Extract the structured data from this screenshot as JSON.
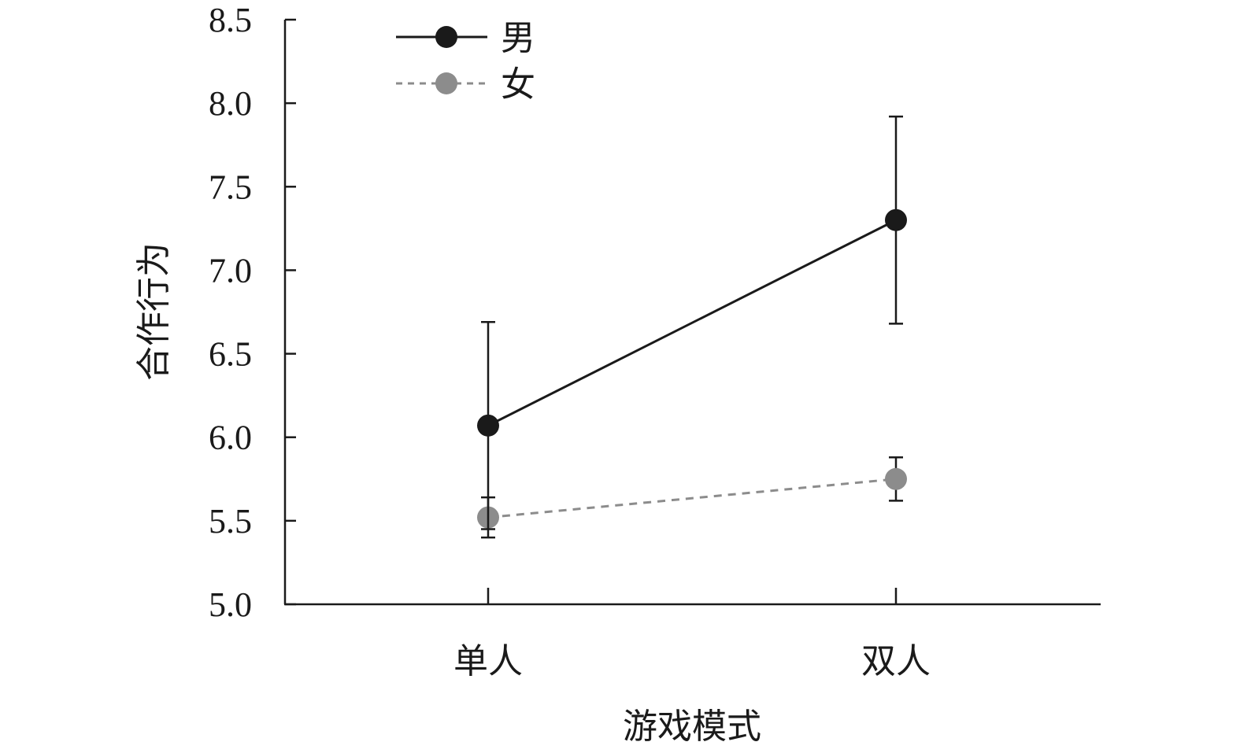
{
  "chart_data": {
    "type": "line",
    "xlabel": "游戏模式",
    "ylabel": "合作行为",
    "categories": [
      "单人",
      "双人"
    ],
    "ylim": [
      5.0,
      8.5
    ],
    "yticks": [
      "5.0",
      "5.5",
      "6.0",
      "6.5",
      "7.0",
      "7.5",
      "8.0",
      "8.5"
    ],
    "ytick_values": [
      5.0,
      5.5,
      6.0,
      6.5,
      7.0,
      7.5,
      8.0,
      8.5
    ],
    "grid": false,
    "legend_position": "top-left",
    "series": [
      {
        "name": "男",
        "values": [
          6.07,
          7.3
        ],
        "error": [
          0.62,
          0.62
        ],
        "color": "#1a1a1a",
        "line_style": "solid",
        "marker": "filled-circle"
      },
      {
        "name": "女",
        "values": [
          5.52,
          5.75
        ],
        "error": [
          0.12,
          0.13
        ],
        "color": "#8c8c8c",
        "line_style": "dashed",
        "marker": "filled-circle"
      }
    ]
  }
}
